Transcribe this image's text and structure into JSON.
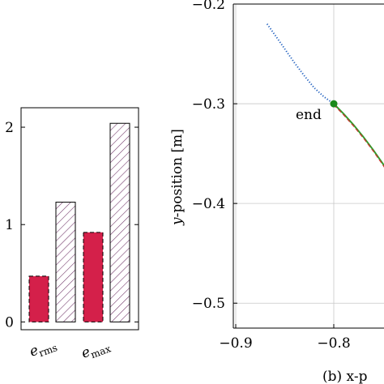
{
  "chart_data": [
    {
      "type": "bar",
      "categories": [
        "e_rms",
        "e_max"
      ],
      "category_labels": [
        {
          "base": "e",
          "sub": "rms"
        },
        {
          "base": "e",
          "sub": "max"
        }
      ],
      "series": [
        {
          "values": [
            0.47,
            0.92
          ],
          "style": "solid",
          "color": "#d4204a",
          "edge": "dashed"
        },
        {
          "values": [
            1.23,
            2.04
          ],
          "style": "hatched",
          "color": "#7a3b6e",
          "edge": "solid"
        }
      ],
      "ylim": [
        -0.08,
        2.2
      ],
      "yticks": [
        0,
        1,
        2
      ],
      "ytick_labels": [
        "0",
        "1",
        "2"
      ]
    },
    {
      "type": "line",
      "ylabel_var": "y",
      "ylabel_rest": "-position [m]",
      "xlabel_visible": "(b) x-p",
      "xlim": [
        -0.92,
        -0.72
      ],
      "ylim": [
        -0.525,
        -0.2
      ],
      "xticks": [
        -0.9,
        -0.8
      ],
      "xtick_labels": [
        "−0.9",
        "−0.8"
      ],
      "yticks": [
        -0.2,
        -0.3,
        -0.4,
        -0.5
      ],
      "ytick_labels": [
        "−0.2",
        "−0.3",
        "−0.4",
        "−0.5"
      ],
      "grid": true,
      "series": [
        {
          "style": "dotted",
          "color": "#1f5fbf",
          "x": [
            -0.868,
            -0.86,
            -0.85,
            -0.84,
            -0.83,
            -0.82,
            -0.81,
            -0.8
          ],
          "y": [
            -0.22,
            -0.231,
            -0.245,
            -0.259,
            -0.272,
            -0.284,
            -0.293,
            -0.3
          ]
        },
        {
          "style": "solid",
          "color": "#2ca02c",
          "x": [
            -0.8,
            -0.79,
            -0.78,
            -0.77,
            -0.76,
            -0.75,
            -0.745
          ],
          "y": [
            -0.3,
            -0.31,
            -0.321,
            -0.333,
            -0.346,
            -0.36,
            -0.368
          ]
        },
        {
          "style": "dashed",
          "color": "#c0392b",
          "x": [
            -0.8,
            -0.79,
            -0.78,
            -0.77,
            -0.76,
            -0.75,
            -0.745
          ],
          "y": [
            -0.301,
            -0.311,
            -0.322,
            -0.334,
            -0.347,
            -0.361,
            -0.369
          ]
        }
      ],
      "annotations": [
        {
          "text": "end",
          "x": -0.8,
          "y": -0.3,
          "color": "#1a8a1a"
        }
      ]
    }
  ]
}
